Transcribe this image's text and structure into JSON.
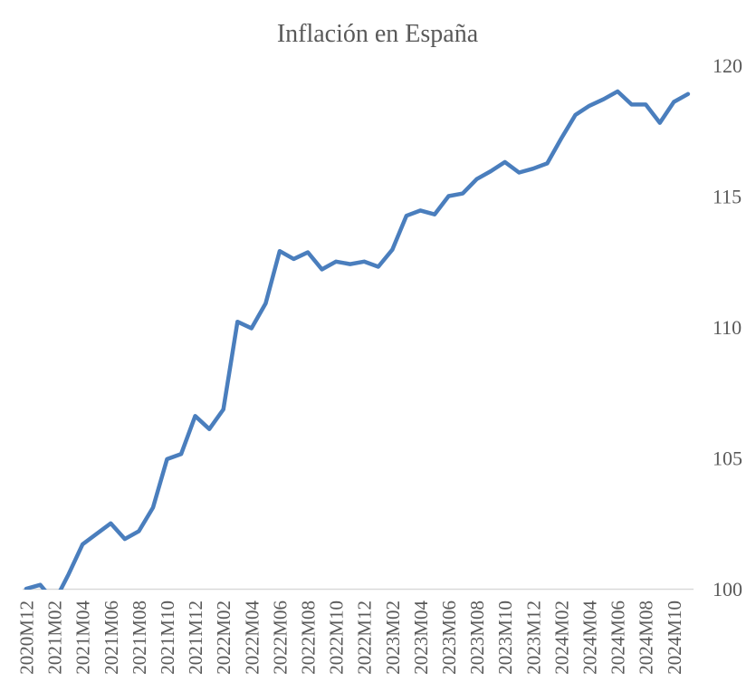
{
  "page": {
    "background": "#ffffff"
  },
  "chart_data": {
    "type": "line",
    "title": "Inflación en España",
    "xlabel": "",
    "ylabel": "",
    "grid": false,
    "legend": "none",
    "y_axis_side": "right",
    "ylim": [
      100,
      120
    ],
    "yticks": [
      100,
      105,
      110,
      115,
      120
    ],
    "x_tick_every": 2,
    "x": [
      "2020M12",
      "2021M01",
      "2021M02",
      "2021M03",
      "2021M04",
      "2021M05",
      "2021M06",
      "2021M07",
      "2021M08",
      "2021M09",
      "2021M10",
      "2021M11",
      "2021M12",
      "2022M01",
      "2022M02",
      "2022M03",
      "2022M04",
      "2022M05",
      "2022M06",
      "2022M07",
      "2022M08",
      "2022M09",
      "2022M10",
      "2022M11",
      "2022M12",
      "2023M01",
      "2023M02",
      "2023M03",
      "2023M04",
      "2023M05",
      "2023M06",
      "2023M07",
      "2023M08",
      "2023M09",
      "2023M10",
      "2023M11",
      "2023M12",
      "2024M01",
      "2024M02",
      "2024M03",
      "2024M04",
      "2024M05",
      "2024M06",
      "2024M07",
      "2024M08",
      "2024M09",
      "2024M10",
      "2024M11"
    ],
    "values": [
      100.0,
      100.15,
      99.5,
      100.55,
      101.7,
      102.1,
      102.5,
      101.9,
      102.2,
      103.1,
      104.95,
      105.15,
      106.6,
      106.1,
      106.85,
      110.2,
      109.95,
      110.9,
      112.9,
      112.6,
      112.85,
      112.2,
      112.5,
      112.4,
      112.5,
      112.3,
      112.95,
      114.25,
      114.45,
      114.3,
      115.0,
      115.1,
      115.65,
      115.95,
      116.3,
      115.9,
      116.05,
      116.25,
      117.2,
      118.1,
      118.45,
      118.7,
      119.0,
      118.5,
      118.5,
      117.8,
      118.6,
      118.9
    ],
    "line_color": "#4a7ebd",
    "axis_color": "#d9d9d9",
    "text_color": "#595959"
  }
}
